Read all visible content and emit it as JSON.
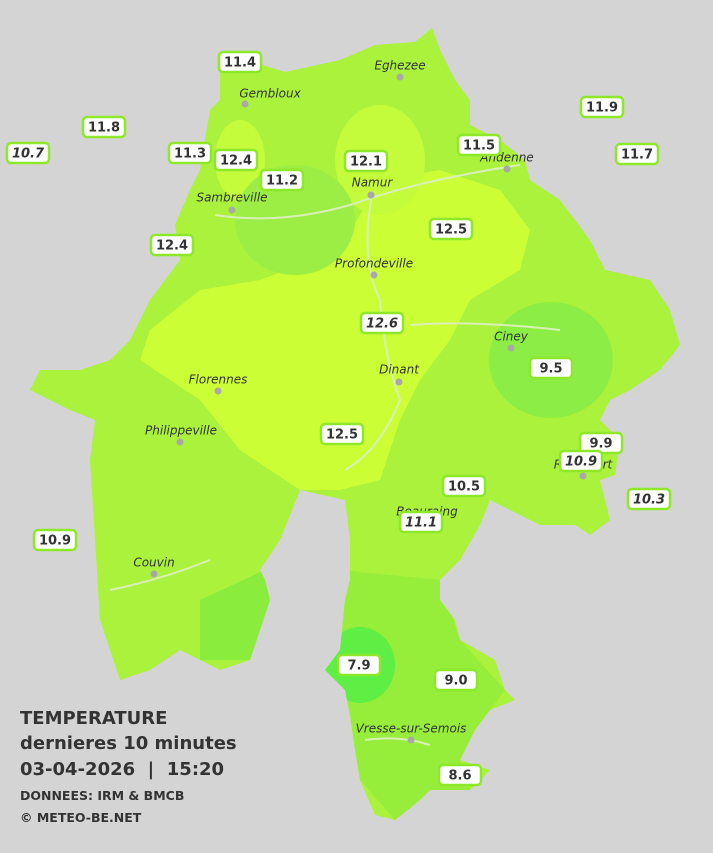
{
  "title_block": {
    "title": "TEMPERATURE",
    "subtitle": "dernieres 10 minutes",
    "datetime": "03-04-2026  |  15:20",
    "source": "DONNEES: IRM & BMCB",
    "copyright": "© METEO-BE.NET"
  },
  "cities": [
    "Eghezee",
    "Gembloux",
    "Andenne",
    "Namur",
    "Sambreville",
    "Profondeville",
    "Ciney",
    "Dinant",
    "Florennes",
    "Philippeville",
    "Rochefort",
    "Beauraing",
    "Couvin",
    "Vresse-sur-Semois"
  ],
  "stations": [
    {
      "label": "11.4",
      "italic": false
    },
    {
      "label": "11.8",
      "italic": false
    },
    {
      "label": "10.7",
      "italic": true
    },
    {
      "label": "11.3",
      "italic": false
    },
    {
      "label": "12.4",
      "italic": false
    },
    {
      "label": "11.2",
      "italic": false
    },
    {
      "label": "12.1",
      "italic": false
    },
    {
      "label": "11.5",
      "italic": false
    },
    {
      "label": "11.9",
      "italic": false
    },
    {
      "label": "11.7",
      "italic": false
    },
    {
      "label": "12.4",
      "italic": false
    },
    {
      "label": "12.5",
      "italic": false
    },
    {
      "label": "12.6",
      "italic": true
    },
    {
      "label": "9.5",
      "italic": false
    },
    {
      "label": "12.5",
      "italic": false
    },
    {
      "label": "9.9",
      "italic": false
    },
    {
      "label": "10.9",
      "italic": true
    },
    {
      "label": "10.5",
      "italic": false
    },
    {
      "label": "10.3",
      "italic": true
    },
    {
      "label": "11.1",
      "italic": true
    },
    {
      "label": "10.9",
      "italic": false
    },
    {
      "label": "7.9",
      "italic": false
    },
    {
      "label": "9.0",
      "italic": false
    },
    {
      "label": "8.6",
      "italic": false
    }
  ]
}
